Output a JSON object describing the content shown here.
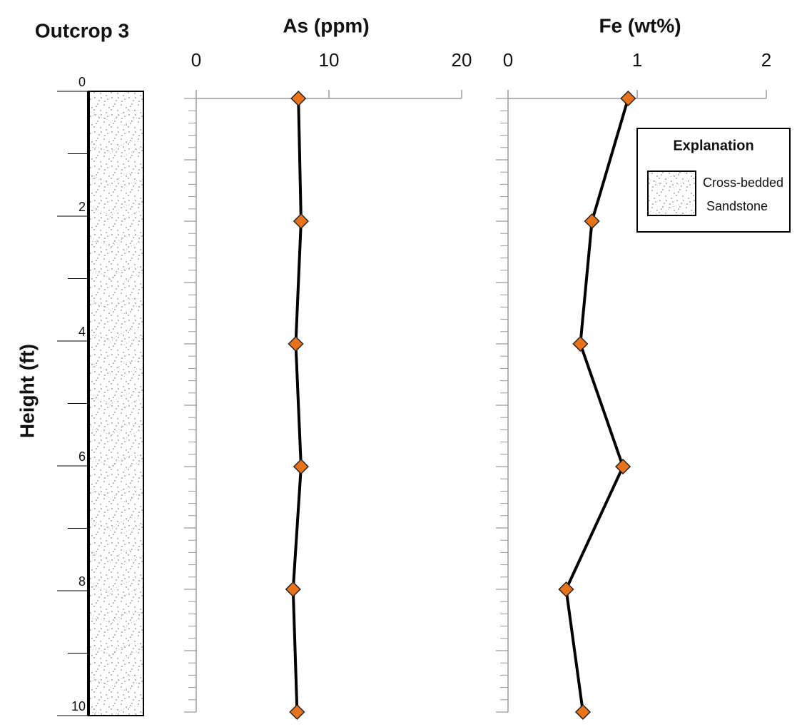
{
  "chart_data": [
    {
      "type": "column",
      "title": "Outcrop 3",
      "y_label": "Height (ft)",
      "ylim": [
        0,
        10
      ],
      "y_inverted": true,
      "yticks": [
        0,
        2,
        4,
        6,
        8,
        10
      ],
      "minor_yticks": [
        1,
        3,
        5,
        7,
        9
      ]
    },
    {
      "type": "line",
      "title": "As (ppm)",
      "xlim": [
        0,
        20
      ],
      "xticks": [
        0,
        10,
        20
      ],
      "ylim": [
        0,
        10
      ],
      "y_inverted": true,
      "yticks": [
        0,
        1,
        2,
        3,
        4,
        5,
        6,
        7,
        8,
        9,
        10
      ],
      "minor_yticks": [
        0.2,
        0.4,
        0.6,
        0.8,
        1.2,
        1.4,
        1.6,
        1.8,
        2.2,
        2.4,
        2.6,
        2.8,
        3.2,
        3.4,
        3.6,
        3.8,
        4.2,
        4.4,
        4.6,
        4.8,
        5.2,
        5.4,
        5.6,
        5.8,
        6.2,
        6.4,
        6.6,
        6.8,
        7.2,
        7.4,
        7.6,
        7.8,
        8.2,
        8.4,
        8.6,
        8.8,
        9.2,
        9.4,
        9.6,
        9.8
      ],
      "series": [
        {
          "color": "#000000",
          "marker_color": "#e8731a",
          "y": [
            0,
            2,
            4,
            6,
            8,
            10
          ],
          "values": [
            7.7,
            7.9,
            7.5,
            7.9,
            7.3,
            7.6
          ]
        }
      ]
    },
    {
      "type": "line",
      "title": "Fe (wt%)",
      "xlim": [
        0,
        2
      ],
      "xticks": [
        0,
        1,
        2
      ],
      "ylim": [
        0,
        10
      ],
      "y_inverted": true,
      "yticks": [
        0,
        1,
        2,
        3,
        4,
        5,
        6,
        7,
        8,
        9,
        10
      ],
      "minor_yticks": [
        0.2,
        0.4,
        0.6,
        0.8,
        1.2,
        1.4,
        1.6,
        1.8,
        2.2,
        2.4,
        2.6,
        2.8,
        3.2,
        3.4,
        3.6,
        3.8,
        4.2,
        4.4,
        4.6,
        4.8,
        5.2,
        5.4,
        5.6,
        5.8,
        6.2,
        6.4,
        6.6,
        6.8,
        7.2,
        7.4,
        7.6,
        7.8,
        8.2,
        8.4,
        8.6,
        8.8,
        9.2,
        9.4,
        9.6,
        9.8
      ],
      "series": [
        {
          "color": "#000000",
          "marker_color": "#e8731a",
          "y": [
            0,
            2,
            4,
            6,
            8,
            10
          ],
          "values": [
            0.93,
            0.65,
            0.56,
            0.89,
            0.45,
            0.58
          ]
        }
      ]
    }
  ],
  "legend": {
    "title": "Explanation",
    "label_lines": [
      "Cross-bedded",
      "Sandstone"
    ]
  }
}
